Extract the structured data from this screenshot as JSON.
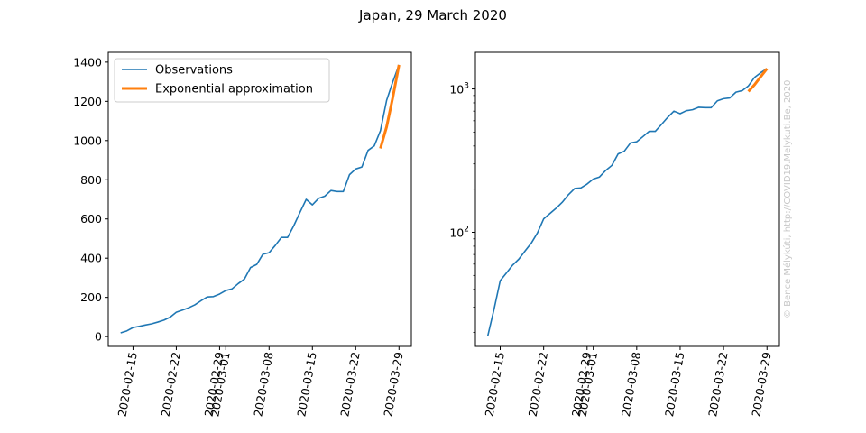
{
  "figure": {
    "title": "Japan, 29 March 2020",
    "watermark": "© Bence Mélykúti, http://COVID19.Melykuti.Be, 2020"
  },
  "colors": {
    "observations": "#1f77b4",
    "approximation": "#ff7f0e",
    "axis": "#000000"
  },
  "chart_data": [
    {
      "type": "line",
      "scale": "linear",
      "ylim": [
        -50,
        1450
      ],
      "yticks": [
        0,
        200,
        400,
        600,
        800,
        1000,
        1200,
        1400
      ],
      "xlim": [
        "2020-02-11",
        "2020-03-31"
      ],
      "xticks": [
        "2020-02-15",
        "2020-02-22",
        "2020-02-29",
        "2020-03-01",
        "2020-03-08",
        "2020-03-15",
        "2020-03-22",
        "2020-03-29"
      ],
      "xtick_labels": [
        "2020-02-15",
        "2020-02-22",
        "2020-02-29",
        "2020-03-01",
        "2020-03-08",
        "2020-03-15",
        "2020-03-22",
        "2020-03-29"
      ],
      "legend": {
        "placement": "upper-left",
        "entries": [
          "Observations",
          "Exponential approximation"
        ]
      },
      "series": [
        {
          "name": "Observations",
          "color": "#1f77b4",
          "x": [
            "2020-02-13",
            "2020-02-14",
            "2020-02-15",
            "2020-02-16",
            "2020-02-17",
            "2020-02-18",
            "2020-02-19",
            "2020-02-20",
            "2020-02-21",
            "2020-02-22",
            "2020-02-23",
            "2020-02-24",
            "2020-02-25",
            "2020-02-26",
            "2020-02-27",
            "2020-02-28",
            "2020-02-29",
            "2020-03-01",
            "2020-03-02",
            "2020-03-03",
            "2020-03-04",
            "2020-03-05",
            "2020-03-06",
            "2020-03-07",
            "2020-03-08",
            "2020-03-09",
            "2020-03-10",
            "2020-03-11",
            "2020-03-12",
            "2020-03-13",
            "2020-03-14",
            "2020-03-15",
            "2020-03-16",
            "2020-03-17",
            "2020-03-18",
            "2020-03-19",
            "2020-03-20",
            "2020-03-21",
            "2020-03-22",
            "2020-03-23",
            "2020-03-24",
            "2020-03-25",
            "2020-03-26",
            "2020-03-27",
            "2020-03-28",
            "2020-03-29"
          ],
          "y": [
            19,
            29,
            46,
            52,
            59,
            65,
            74,
            84,
            99,
            124,
            135,
            147,
            162,
            183,
            202,
            204,
            217,
            235,
            243,
            270,
            293,
            352,
            368,
            420,
            428,
            465,
            506,
            506,
            566,
            634,
            700,
            672,
            705,
            716,
            745,
            740,
            740,
            826,
            855,
            865,
            950,
            973,
            1050,
            1205,
            1300,
            1386
          ]
        },
        {
          "name": "Exponential approximation",
          "color": "#ff7f0e",
          "x": [
            "2020-03-26",
            "2020-03-27",
            "2020-03-28",
            "2020-03-29"
          ],
          "y": [
            960,
            1070,
            1220,
            1386
          ]
        }
      ]
    },
    {
      "type": "line",
      "scale": "log",
      "ylim": [
        16,
        1800
      ],
      "yticks": [
        100,
        1000
      ],
      "ytick_labels": [
        {
          "base": "10",
          "exp": "2"
        },
        {
          "base": "10",
          "exp": "3"
        }
      ],
      "xlim": [
        "2020-02-11",
        "2020-03-31"
      ],
      "xticks": [
        "2020-02-15",
        "2020-02-22",
        "2020-02-29",
        "2020-03-01",
        "2020-03-08",
        "2020-03-15",
        "2020-03-22",
        "2020-03-29"
      ],
      "xtick_labels": [
        "2020-02-15",
        "2020-02-22",
        "2020-02-29",
        "2020-03-01",
        "2020-03-08",
        "2020-03-15",
        "2020-03-22",
        "2020-03-29"
      ],
      "series": [
        {
          "color": "#1f77b4",
          "x": [
            "2020-02-13",
            "2020-02-14",
            "2020-02-15",
            "2020-02-16",
            "2020-02-17",
            "2020-02-18",
            "2020-02-19",
            "2020-02-20",
            "2020-02-21",
            "2020-02-22",
            "2020-02-23",
            "2020-02-24",
            "2020-02-25",
            "2020-02-26",
            "2020-02-27",
            "2020-02-28",
            "2020-02-29",
            "2020-03-01",
            "2020-03-02",
            "2020-03-03",
            "2020-03-04",
            "2020-03-05",
            "2020-03-06",
            "2020-03-07",
            "2020-03-08",
            "2020-03-09",
            "2020-03-10",
            "2020-03-11",
            "2020-03-12",
            "2020-03-13",
            "2020-03-14",
            "2020-03-15",
            "2020-03-16",
            "2020-03-17",
            "2020-03-18",
            "2020-03-19",
            "2020-03-20",
            "2020-03-21",
            "2020-03-22",
            "2020-03-23",
            "2020-03-24",
            "2020-03-25",
            "2020-03-26",
            "2020-03-27",
            "2020-03-28",
            "2020-03-29"
          ],
          "y": [
            19,
            29,
            46,
            52,
            59,
            65,
            74,
            84,
            99,
            124,
            135,
            147,
            162,
            183,
            202,
            204,
            217,
            235,
            243,
            270,
            293,
            352,
            368,
            420,
            428,
            465,
            506,
            506,
            566,
            634,
            700,
            672,
            705,
            716,
            745,
            740,
            740,
            826,
            855,
            865,
            950,
            973,
            1050,
            1205,
            1300,
            1386
          ]
        },
        {
          "color": "#ff7f0e",
          "x": [
            "2020-03-26",
            "2020-03-27",
            "2020-03-28",
            "2020-03-29"
          ],
          "y": [
            960,
            1070,
            1220,
            1386
          ]
        }
      ]
    }
  ]
}
